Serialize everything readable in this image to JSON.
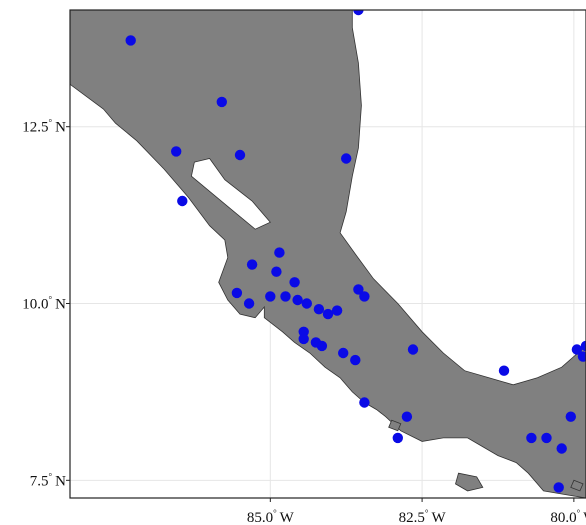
{
  "chart_data": {
    "type": "scatter",
    "projection": "lon-lat",
    "xlim": [
      -88.3,
      -79.8
    ],
    "ylim": [
      7.25,
      14.15
    ],
    "x_ticks": [
      {
        "value": -85.0,
        "label": "85.0",
        "deg": "°",
        "hemi": "W"
      },
      {
        "value": -82.5,
        "label": "82.5",
        "deg": "°",
        "hemi": "W"
      },
      {
        "value": -80.0,
        "label": "80.0",
        "deg": "°",
        "hemi": "W"
      }
    ],
    "y_ticks": [
      {
        "value": 12.5,
        "label": "12.5",
        "deg": "°",
        "hemi": "N"
      },
      {
        "value": 10.0,
        "label": "10.0",
        "deg": "°",
        "hemi": "N"
      },
      {
        "value": 7.5,
        "label": "7.5",
        "deg": "°",
        "hemi": "N"
      }
    ],
    "grid": true,
    "land_color": "#808080",
    "coast_color": "#333333",
    "water_color": "#ffffff",
    "point_color": "#0a0ae6",
    "land_outline": [
      [
        -88.3,
        14.15
      ],
      [
        -83.65,
        14.15
      ],
      [
        -83.65,
        13.9
      ],
      [
        -83.55,
        13.4
      ],
      [
        -83.5,
        12.8
      ],
      [
        -83.55,
        12.2
      ],
      [
        -83.65,
        11.8
      ],
      [
        -83.75,
        11.3
      ],
      [
        -83.85,
        11.0
      ],
      [
        -83.6,
        10.7
      ],
      [
        -83.3,
        10.35
      ],
      [
        -82.9,
        10.0
      ],
      [
        -82.5,
        9.6
      ],
      [
        -82.15,
        9.3
      ],
      [
        -81.8,
        9.05
      ],
      [
        -81.4,
        8.95
      ],
      [
        -81.0,
        8.85
      ],
      [
        -80.6,
        8.95
      ],
      [
        -80.2,
        9.1
      ],
      [
        -79.8,
        9.4
      ],
      [
        -79.8,
        7.25
      ],
      [
        -80.15,
        7.3
      ],
      [
        -80.5,
        7.35
      ],
      [
        -80.75,
        7.6
      ],
      [
        -80.95,
        7.75
      ],
      [
        -81.25,
        7.85
      ],
      [
        -81.55,
        8.0
      ],
      [
        -81.75,
        8.1
      ],
      [
        -82.15,
        8.1
      ],
      [
        -82.5,
        8.05
      ],
      [
        -82.85,
        8.2
      ],
      [
        -83.1,
        8.4
      ],
      [
        -83.25,
        8.5
      ],
      [
        -83.45,
        8.6
      ],
      [
        -83.65,
        8.75
      ],
      [
        -83.85,
        8.95
      ],
      [
        -84.1,
        9.1
      ],
      [
        -84.35,
        9.3
      ],
      [
        -84.6,
        9.45
      ],
      [
        -84.8,
        9.6
      ],
      [
        -85.1,
        9.8
      ],
      [
        -85.1,
        9.95
      ],
      [
        -85.25,
        9.8
      ],
      [
        -85.5,
        9.85
      ],
      [
        -85.7,
        10.05
      ],
      [
        -85.85,
        10.3
      ],
      [
        -85.7,
        10.65
      ],
      [
        -85.75,
        10.9
      ],
      [
        -86.0,
        11.1
      ],
      [
        -86.35,
        11.5
      ],
      [
        -86.75,
        11.9
      ],
      [
        -87.2,
        12.3
      ],
      [
        -87.55,
        12.55
      ],
      [
        -87.75,
        12.75
      ],
      [
        -88.3,
        13.1
      ]
    ],
    "lake_outline": [
      [
        -86.25,
        12.0
      ],
      [
        -86.0,
        12.05
      ],
      [
        -85.75,
        11.75
      ],
      [
        -85.3,
        11.45
      ],
      [
        -85.0,
        11.15
      ],
      [
        -85.25,
        11.05
      ],
      [
        -85.6,
        11.3
      ],
      [
        -85.95,
        11.55
      ],
      [
        -86.3,
        11.8
      ]
    ],
    "island_outlines": [
      [
        [
          -81.9,
          7.6
        ],
        [
          -81.6,
          7.55
        ],
        [
          -81.5,
          7.4
        ],
        [
          -81.75,
          7.35
        ],
        [
          -81.95,
          7.45
        ]
      ],
      [
        [
          -83.0,
          8.35
        ],
        [
          -82.85,
          8.3
        ],
        [
          -82.9,
          8.2
        ],
        [
          -83.05,
          8.25
        ]
      ],
      [
        [
          -80.0,
          7.5
        ],
        [
          -79.85,
          7.45
        ],
        [
          -79.9,
          7.35
        ],
        [
          -80.05,
          7.4
        ]
      ]
    ],
    "points": [
      [
        -87.3,
        13.72
      ],
      [
        -86.55,
        12.15
      ],
      [
        -86.45,
        11.45
      ],
      [
        -85.8,
        12.85
      ],
      [
        -85.5,
        12.1
      ],
      [
        -83.75,
        12.05
      ],
      [
        -83.55,
        14.15
      ],
      [
        -84.85,
        10.72
      ],
      [
        -84.9,
        10.45
      ],
      [
        -85.3,
        10.55
      ],
      [
        -85.55,
        10.15
      ],
      [
        -85.35,
        10.0
      ],
      [
        -85.0,
        10.1
      ],
      [
        -84.75,
        10.1
      ],
      [
        -84.6,
        10.3
      ],
      [
        -84.55,
        10.05
      ],
      [
        -84.4,
        10.0
      ],
      [
        -84.2,
        9.92
      ],
      [
        -84.05,
        9.85
      ],
      [
        -83.9,
        9.9
      ],
      [
        -83.55,
        10.2
      ],
      [
        -83.45,
        10.1
      ],
      [
        -84.45,
        9.6
      ],
      [
        -84.45,
        9.5
      ],
      [
        -84.25,
        9.45
      ],
      [
        -84.15,
        9.4
      ],
      [
        -83.8,
        9.3
      ],
      [
        -83.6,
        9.2
      ],
      [
        -83.45,
        8.6
      ],
      [
        -82.65,
        9.35
      ],
      [
        -82.75,
        8.4
      ],
      [
        -82.9,
        8.1
      ],
      [
        -81.15,
        9.05
      ],
      [
        -80.7,
        8.1
      ],
      [
        -80.45,
        8.1
      ],
      [
        -80.2,
        7.95
      ],
      [
        -80.05,
        8.4
      ],
      [
        -80.25,
        7.4
      ],
      [
        -79.85,
        9.25
      ],
      [
        -79.95,
        9.35
      ],
      [
        -79.8,
        9.4
      ]
    ]
  }
}
